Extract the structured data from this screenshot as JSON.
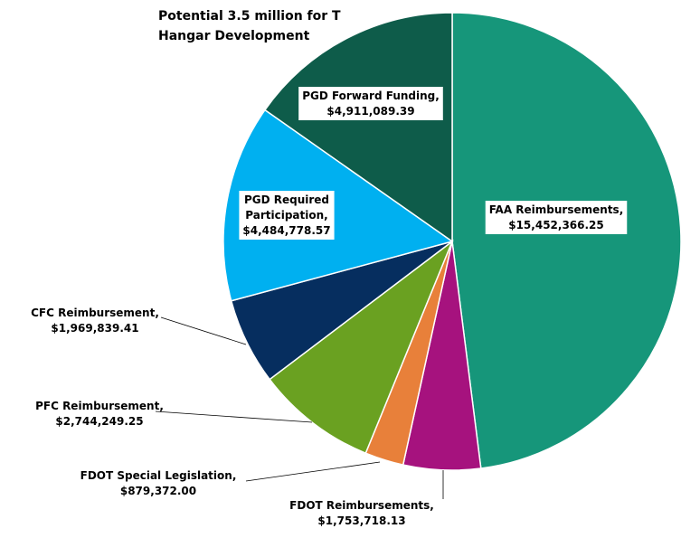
{
  "chart_data": {
    "type": "pie",
    "annotation": [
      "Potential 3.5 million for T",
      "Hangar Development"
    ],
    "categories": [
      "FAA Reimbursements,",
      "FDOT Reimbursements,",
      "FDOT Special Legislation,",
      "PFC Reimbursement,",
      "CFC Reimbursement,",
      "PGD Required Participation,",
      "PGD Forward Funding,"
    ],
    "values": [
      15452366.25,
      1753718.13,
      879372.0,
      2744249.25,
      1969839.41,
      4484778.57,
      4911089.39
    ],
    "value_labels": [
      "$15,452,366.25",
      "$1,753,718.13",
      "$879,372.00",
      "$2,744,249.25",
      "$1,969,839.41",
      "$4,484,778.57",
      "$4,911,089.39"
    ],
    "colors": [
      "#16967a",
      "#a6127e",
      "#e8803a",
      "#6aa121",
      "#062e5f",
      "#00b0f0",
      "#0e5c4a"
    ]
  }
}
